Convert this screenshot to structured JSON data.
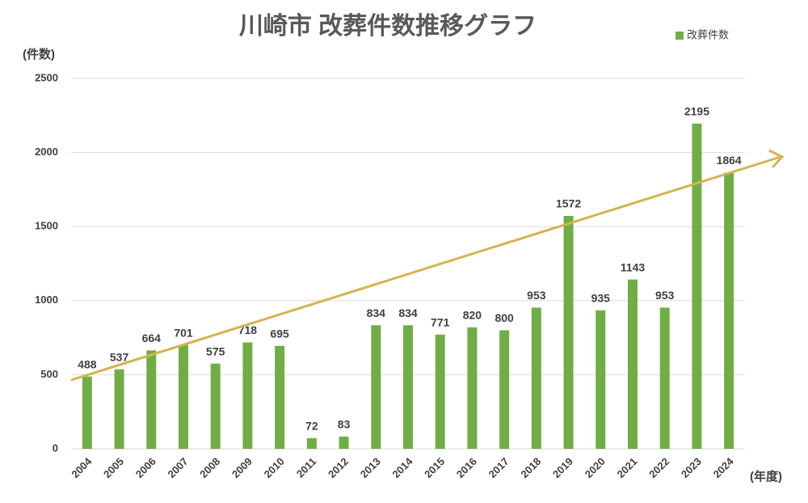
{
  "chart_data": {
    "type": "bar",
    "title": "川崎市 改葬件数推移グラフ",
    "y_label": "(件数)",
    "x_label": "(年度)",
    "categories": [
      "2004",
      "2005",
      "2006",
      "2007",
      "2008",
      "2009",
      "2010",
      "2011",
      "2012",
      "2013",
      "2014",
      "2015",
      "2016",
      "2017",
      "2018",
      "2019",
      "2020",
      "2021",
      "2022",
      "2023",
      "2024"
    ],
    "series": [
      {
        "name": "改葬件数",
        "color": "#70ad47",
        "values": [
          488,
          537,
          664,
          701,
          575,
          718,
          695,
          72,
          83,
          834,
          834,
          771,
          820,
          800,
          953,
          1572,
          935,
          1143,
          953,
          2195,
          1864
        ]
      }
    ],
    "ylim": [
      0,
      2500
    ],
    "yticks": [
      0,
      500,
      1000,
      1500,
      2000,
      2500
    ],
    "grid": true,
    "legend": "top-right"
  }
}
